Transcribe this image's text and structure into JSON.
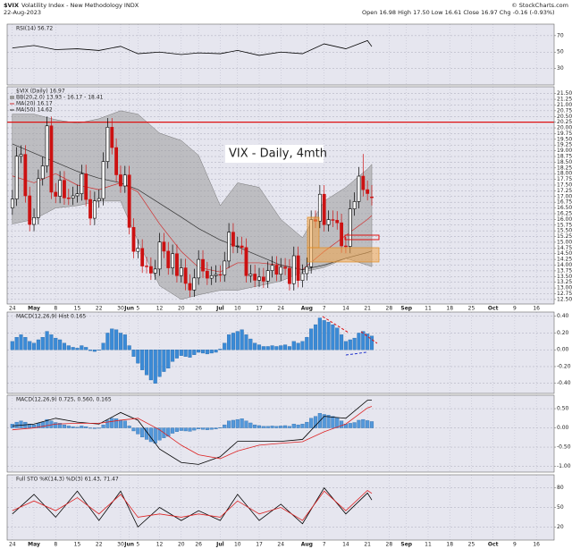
{
  "header": {
    "symbol": "$VIX",
    "name": "Volatility Index - New Methodology INDX",
    "date": "22-Aug-2023",
    "quote": "Open 16.98 High 17.50 Low 16.61 Close 16.97 Chg -0.16 (-0.93%)",
    "copyright": "© StockCharts.com"
  },
  "chart_data": [
    {
      "type": "line",
      "title": "RSI(14) 56.72",
      "ylim": [
        10,
        84
      ],
      "yticks": [
        30,
        50,
        70
      ],
      "grid": true,
      "series": [
        {
          "color": "#000000",
          "x": [
            0,
            5,
            10,
            15,
            20,
            25,
            29,
            34,
            39,
            43,
            48,
            52,
            57,
            62,
            67,
            72,
            77,
            82,
            83
          ],
          "values": [
            55,
            58,
            53,
            54,
            52,
            57,
            48,
            50,
            47,
            49,
            48,
            52,
            46,
            50,
            48,
            60,
            54,
            64,
            56.72
          ]
        }
      ]
    },
    {
      "type": "candlestick",
      "title": "$VIX (Daily) 16.97",
      "annotation": "VIX - Daily, 4mth",
      "up_color": "#000000",
      "down_color": "#cc1111",
      "grid": true,
      "xlim": [
        -1.2,
        125.1
      ],
      "xticks": [
        {
          "value": 0,
          "label": "24"
        },
        {
          "value": 5,
          "label": "May"
        },
        {
          "value": 10,
          "label": "8"
        },
        {
          "value": 15,
          "label": "15"
        },
        {
          "value": 20,
          "label": "22"
        },
        {
          "value": 25,
          "label": "30"
        },
        {
          "value": 27,
          "label": "Jun"
        },
        {
          "value": 29,
          "label": "5"
        },
        {
          "value": 34,
          "label": "12"
        },
        {
          "value": 39,
          "label": "20"
        },
        {
          "value": 43,
          "label": "26"
        },
        {
          "value": 48,
          "label": "Jul"
        },
        {
          "value": 52,
          "label": "10"
        },
        {
          "value": 57,
          "label": "17"
        },
        {
          "value": 62,
          "label": "24"
        },
        {
          "value": 68,
          "label": "Aug"
        },
        {
          "value": 72,
          "label": "7"
        },
        {
          "value": 77,
          "label": "14"
        },
        {
          "value": 82,
          "label": "21"
        },
        {
          "value": 87,
          "label": "28"
        },
        {
          "value": 91,
          "label": "Sep"
        },
        {
          "value": 96,
          "label": "11"
        },
        {
          "value": 101,
          "label": "18"
        },
        {
          "value": 106,
          "label": "25"
        },
        {
          "value": 111,
          "label": "Oct"
        },
        {
          "value": 116,
          "label": "9"
        },
        {
          "value": 121,
          "label": "16"
        }
      ],
      "ylim": [
        12.3,
        21.8
      ],
      "yticks": [
        {
          "value": 12.5,
          "label": "12.50"
        },
        12.75,
        {
          "value": 13,
          "label": "13.00"
        },
        13.25,
        {
          "value": 13.5,
          "label": "13.50"
        },
        13.75,
        {
          "value": 14,
          "label": "14.00"
        },
        14.25,
        {
          "value": 14.5,
          "label": "14.50"
        },
        14.75,
        {
          "value": 15,
          "label": "15.00"
        },
        15.25,
        {
          "value": 15.5,
          "label": "15.50"
        },
        15.75,
        {
          "value": 16,
          "label": "16.00"
        },
        16.25,
        {
          "value": 16.5,
          "label": "16.50"
        },
        16.75,
        {
          "value": 17,
          "label": "17.00"
        },
        17.25,
        {
          "value": 17.5,
          "label": "17.50"
        },
        17.75,
        {
          "value": 18,
          "label": "18.00"
        },
        18.25,
        {
          "value": 18.5,
          "label": "18.50"
        },
        18.75,
        {
          "value": 19,
          "label": "19.00"
        },
        19.25,
        {
          "value": 19.5,
          "label": "19.50"
        },
        19.75,
        {
          "value": 20,
          "label": "20.00"
        },
        20.25,
        {
          "value": 20.5,
          "label": "20.50"
        },
        20.75,
        {
          "value": 21,
          "label": "21.00"
        },
        21.25,
        {
          "value": 21.5,
          "label": "21.50"
        }
      ],
      "x": [
        0,
        1,
        2,
        3,
        4,
        5,
        6,
        7,
        8,
        9,
        10,
        11,
        12,
        13,
        14,
        15,
        16,
        17,
        18,
        19,
        20,
        21,
        22,
        23,
        24,
        25,
        26,
        27,
        28,
        29,
        30,
        31,
        32,
        33,
        34,
        35,
        36,
        37,
        38,
        39,
        40,
        41,
        42,
        43,
        44,
        45,
        46,
        47,
        48,
        49,
        50,
        51,
        52,
        53,
        54,
        55,
        56,
        57,
        58,
        59,
        60,
        61,
        62,
        63,
        64,
        65,
        66,
        67,
        68,
        69,
        70,
        71,
        72,
        73,
        74,
        75,
        76,
        77,
        78,
        79,
        80,
        81,
        82,
        83
      ],
      "open": [
        16.5,
        16.89,
        18.76,
        18.84,
        17.03,
        15.78,
        16.08,
        17.78,
        18.34,
        20.09,
        17.19,
        17.01,
        17.71,
        16.94,
        16.93,
        17.03,
        17.12,
        17.99,
        16.87,
        16.05,
        16.81,
        16.91,
        18.53,
        20.03,
        19.14,
        17.95,
        17.46,
        17.94,
        15.65,
        14.6,
        14.73,
        13.96,
        13.94,
        13.65,
        13.83,
        15.01,
        14.61,
        13.88,
        14.5,
        13.54,
        13.88,
        13.2,
        12.91,
        13.44,
        14.25,
        13.74,
        13.43,
        13.54,
        13.59,
        13.57,
        14.18,
        15.44,
        14.83,
        14.84,
        14.77,
        13.54,
        13.61,
        13.34,
        13.48,
        13.3,
        13.76,
        13.99,
        13.6,
        13.91,
        13.86,
        13.19,
        14.41,
        13.33,
        13.63,
        13.93,
        15.99,
        15.92,
        17.1,
        15.77,
        15.99,
        15.96,
        15.85,
        14.84,
        14.82,
        16.46,
        16.78,
        17.89,
        17.3,
        16.98
      ],
      "high": [
        17.29,
        19.16,
        19.24,
        19.24,
        17.43,
        16.48,
        18.18,
        18.74,
        20.49,
        20.49,
        17.59,
        18.11,
        18.11,
        17.34,
        17.43,
        17.52,
        18.39,
        18.39,
        17.27,
        17.21,
        17.31,
        18.93,
        20.43,
        20.43,
        19.54,
        18.35,
        18.34,
        18.34,
        16.05,
        15.13,
        15.13,
        14.36,
        14.34,
        14.23,
        15.41,
        15.41,
        15.01,
        14.9,
        14.9,
        14.28,
        14.28,
        13.6,
        13.84,
        14.65,
        14.65,
        14.14,
        13.94,
        13.99,
        13.99,
        14.58,
        15.84,
        15.84,
        15.24,
        15.24,
        15.17,
        14.01,
        14.01,
        13.88,
        13.88,
        14.16,
        14.39,
        14.39,
        14.31,
        14.31,
        14.26,
        14.81,
        14.81,
        14.03,
        14.33,
        16.39,
        16.39,
        17.5,
        17.5,
        16.39,
        16.39,
        16.36,
        16.25,
        15.24,
        16.86,
        17.18,
        18.29,
        18.86,
        17.7,
        17.5
      ],
      "low": [
        16.2,
        16.59,
        18.46,
        16.73,
        15.48,
        15.48,
        15.78,
        17.48,
        18.04,
        16.89,
        16.71,
        16.71,
        16.64,
        16.63,
        16.63,
        16.73,
        16.82,
        16.57,
        15.75,
        15.75,
        16.51,
        16.61,
        18.23,
        18.84,
        17.65,
        17.16,
        17.16,
        15.35,
        14.3,
        14.3,
        13.66,
        13.64,
        13.35,
        13.35,
        13.53,
        14.31,
        13.58,
        13.58,
        13.24,
        13.24,
        12.9,
        12.61,
        12.61,
        13.14,
        13.44,
        13.13,
        13.13,
        13.24,
        13.27,
        13.27,
        13.88,
        14.53,
        14.53,
        14.47,
        13.24,
        13.24,
        13.04,
        13.04,
        13.0,
        13.0,
        13.46,
        13.3,
        13.3,
        13.56,
        12.89,
        12.89,
        13.03,
        13.03,
        13.33,
        13.63,
        15.62,
        15.62,
        15.47,
        15.47,
        15.66,
        15.55,
        14.54,
        14.52,
        14.52,
        16.16,
        16.48,
        17.0,
        16.83,
        16.61
      ],
      "close": [
        16.89,
        18.76,
        18.84,
        17.03,
        15.78,
        16.08,
        17.78,
        18.34,
        20.09,
        17.19,
        17.01,
        17.71,
        16.94,
        16.93,
        17.03,
        17.12,
        17.99,
        16.87,
        16.05,
        16.81,
        16.91,
        18.53,
        20.03,
        19.14,
        17.95,
        17.46,
        17.94,
        15.65,
        14.6,
        14.73,
        13.96,
        13.94,
        13.65,
        13.83,
        15.01,
        14.61,
        13.88,
        14.5,
        13.54,
        13.88,
        13.2,
        12.91,
        13.44,
        14.25,
        13.74,
        13.43,
        13.54,
        13.59,
        13.57,
        14.18,
        15.44,
        14.83,
        14.84,
        14.77,
        13.54,
        13.61,
        13.34,
        13.48,
        13.3,
        13.76,
        13.99,
        13.6,
        13.91,
        13.86,
        13.19,
        14.41,
        13.33,
        13.63,
        13.93,
        15.99,
        15.92,
        17.1,
        15.77,
        15.99,
        15.96,
        15.85,
        14.84,
        14.82,
        16.46,
        16.78,
        17.89,
        17.3,
        17.13,
        16.97
      ],
      "bands": {
        "name": "BB(20,2.0) 13.93 - 16.17 - 18.41",
        "color": "#9a9a9a",
        "x": [
          0,
          5,
          10,
          15,
          20,
          25,
          29,
          34,
          39,
          43,
          48,
          52,
          57,
          62,
          67,
          72,
          77,
          82,
          83
        ],
        "upper": [
          20.6,
          20.6,
          20.36,
          20.2,
          20.4,
          20.75,
          20.6,
          19.77,
          19.45,
          18.8,
          16.6,
          17.6,
          17.4,
          16.0,
          15.2,
          16.8,
          17.4,
          18.2,
          18.41
        ],
        "lower": [
          15.8,
          16.0,
          16.5,
          16.6,
          16.8,
          16.8,
          15.05,
          13.1,
          12.5,
          12.7,
          12.9,
          12.9,
          13.1,
          13.3,
          13.7,
          13.9,
          14.3,
          14.0,
          13.93
        ]
      },
      "series": [
        {
          "name": "MA(20) 16.17",
          "color": "#d03030",
          "x": [
            0,
            5,
            10,
            15,
            20,
            25,
            29,
            34,
            39,
            43,
            48,
            52,
            57,
            62,
            67,
            72,
            77,
            82,
            83
          ],
          "values": [
            17.9,
            17.6,
            18.0,
            17.5,
            17.3,
            17.6,
            17.2,
            15.8,
            14.6,
            13.9,
            13.7,
            14.1,
            14.1,
            14.0,
            13.8,
            14.6,
            15.3,
            16.0,
            16.17
          ]
        },
        {
          "name": "MA(50) 14.62",
          "color": "#333333",
          "x": [
            0,
            5,
            10,
            15,
            20,
            25,
            29,
            34,
            39,
            43,
            48,
            52,
            57,
            62,
            67,
            72,
            77,
            82,
            83
          ],
          "values": [
            19.3,
            18.9,
            18.5,
            18.1,
            17.8,
            17.6,
            17.3,
            16.7,
            16.1,
            15.6,
            15.1,
            14.8,
            14.4,
            14.0,
            13.8,
            14.0,
            14.3,
            14.55,
            14.62
          ]
        }
      ],
      "hlines": [
        {
          "value": 20.25,
          "color": "#dd1111"
        }
      ]
    },
    {
      "type": "bar",
      "title": "MACD(12,26,9) Hist 0.165",
      "color": "#3a8ad6",
      "ylim": [
        -0.52,
        0.45
      ],
      "grid": true,
      "yticks": [
        {
          "value": -0.4,
          "label": "-0.40"
        },
        {
          "value": -0.2,
          "label": "-0.20"
        },
        {
          "value": 0,
          "label": "0.00"
        },
        {
          "value": 0.2,
          "label": "0.20"
        },
        {
          "value": 0.4,
          "label": "0.40"
        }
      ],
      "values": [
        0.1,
        0.15,
        0.18,
        0.15,
        0.1,
        0.08,
        0.12,
        0.15,
        0.22,
        0.18,
        0.14,
        0.12,
        0.08,
        0.05,
        0.03,
        0.02,
        0.05,
        0.03,
        -0.01,
        -0.02,
        0.0,
        0.08,
        0.2,
        0.25,
        0.24,
        0.2,
        0.18,
        0.05,
        -0.08,
        -0.16,
        -0.24,
        -0.3,
        -0.36,
        -0.4,
        -0.32,
        -0.26,
        -0.22,
        -0.14,
        -0.1,
        -0.07,
        -0.08,
        -0.09,
        -0.06,
        -0.03,
        -0.04,
        -0.05,
        -0.04,
        -0.03,
        0.01,
        0.08,
        0.18,
        0.2,
        0.22,
        0.24,
        0.18,
        0.13,
        0.08,
        0.06,
        0.04,
        0.04,
        0.05,
        0.04,
        0.05,
        0.06,
        0.04,
        0.1,
        0.08,
        0.1,
        0.15,
        0.25,
        0.3,
        0.38,
        0.35,
        0.33,
        0.3,
        0.26,
        0.18,
        0.1,
        0.12,
        0.14,
        0.2,
        0.22,
        0.19,
        0.165
      ]
    },
    {
      "type": "line",
      "title": "MACD(12,26,9) 0.725, 0.560, 0.165",
      "ylim": [
        -1.15,
        0.85
      ],
      "grid": true,
      "yticks": [
        {
          "value": -1,
          "label": "-1.00"
        },
        {
          "value": -0.5,
          "label": "-0.50"
        },
        {
          "value": 0,
          "label": "0.00"
        },
        {
          "value": 0.5,
          "label": "0.50"
        }
      ],
      "series": [
        {
          "color": "#000000",
          "x": [
            0,
            5,
            10,
            15,
            20,
            25,
            29,
            34,
            39,
            43,
            48,
            52,
            57,
            62,
            67,
            72,
            77,
            82,
            83
          ],
          "values": [
            0.05,
            0.1,
            0.25,
            0.15,
            0.1,
            0.4,
            0.2,
            -0.55,
            -0.9,
            -0.95,
            -0.75,
            -0.35,
            -0.35,
            -0.35,
            -0.3,
            0.3,
            0.25,
            0.72,
            0.725
          ]
        },
        {
          "color": "#dd2222",
          "x": [
            0,
            5,
            10,
            15,
            20,
            25,
            29,
            34,
            39,
            43,
            48,
            52,
            57,
            62,
            67,
            72,
            77,
            82,
            83
          ],
          "values": [
            -0.05,
            0.0,
            0.1,
            0.12,
            0.12,
            0.2,
            0.25,
            -0.05,
            -0.45,
            -0.7,
            -0.8,
            -0.6,
            -0.45,
            -0.4,
            -0.36,
            -0.1,
            0.1,
            0.52,
            0.56
          ]
        }
      ]
    },
    {
      "type": "line",
      "title": "Full STO %K(14,3) %D(3) 61.43, 71.47",
      "ylim": [
        0,
        100
      ],
      "yticks": [
        20,
        50,
        80
      ],
      "grid": true,
      "series": [
        {
          "color": "#000000",
          "x": [
            0,
            5,
            10,
            15,
            20,
            25,
            29,
            34,
            39,
            43,
            48,
            52,
            57,
            62,
            67,
            72,
            77,
            82,
            83
          ],
          "values": [
            40,
            70,
            35,
            75,
            30,
            75,
            20,
            50,
            30,
            45,
            30,
            70,
            30,
            55,
            25,
            80,
            40,
            72,
            61.43
          ]
        },
        {
          "color": "#dd2222",
          "x": [
            0,
            5,
            10,
            15,
            20,
            25,
            29,
            34,
            39,
            43,
            48,
            52,
            57,
            62,
            67,
            72,
            77,
            82,
            83
          ],
          "values": [
            45,
            60,
            45,
            65,
            40,
            70,
            35,
            40,
            35,
            40,
            35,
            60,
            40,
            50,
            30,
            75,
            45,
            76,
            71.47
          ]
        }
      ]
    }
  ]
}
